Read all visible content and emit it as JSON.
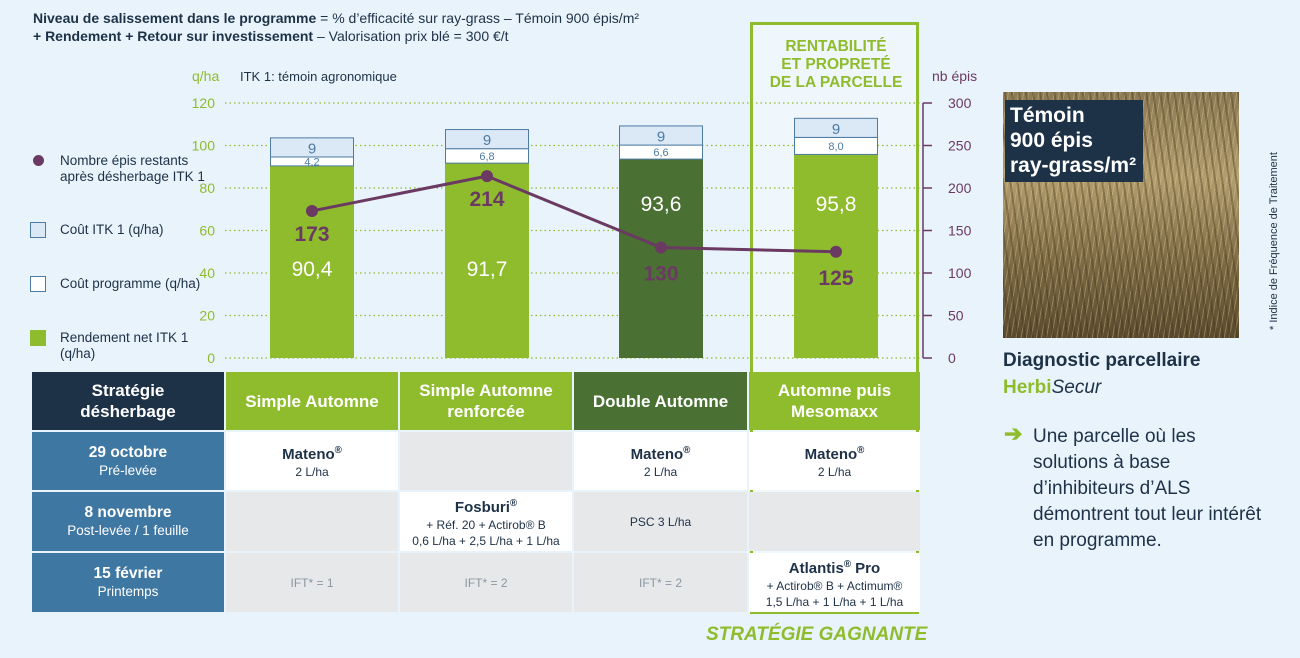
{
  "header": {
    "line1_bold": "Niveau de salissement dans le programme",
    "line1_rest": " = % d’efficacité sur ray-grass – Témoin 900 épis/m²",
    "line2_bold": "+ Rendement + Retour sur investissement",
    "line2_rest": " – Valorisation prix blé = 300 €/t"
  },
  "chart_data": {
    "type": "bar",
    "left_axis_unit": "q/ha",
    "right_axis_unit": "nb épis",
    "subtitle": "ITK 1: témoin agronomique",
    "left_ylim": [
      0,
      120
    ],
    "left_ticks": [
      "0",
      "20",
      "40",
      "60",
      "80",
      "100",
      "120"
    ],
    "right_ylim": [
      0,
      300
    ],
    "right_ticks": [
      "0",
      "50",
      "100",
      "150",
      "200",
      "250",
      "300"
    ],
    "categories": [
      "Simple Automne",
      "Simple Automne renforcée",
      "Double Automne",
      "Automne puis Mesomaxx"
    ],
    "series": [
      {
        "name": "Rendement net ITK 1 (q/ha)",
        "values": [
          90.4,
          91.7,
          93.6,
          95.8
        ],
        "labels": [
          "90,4",
          "91,7",
          "93,6",
          "95,8"
        ]
      },
      {
        "name": "Coût programme (q/ha)",
        "values": [
          4.2,
          6.8,
          6.6,
          8.0
        ],
        "labels": [
          "4,2",
          "6,8",
          "6,6",
          "8,0"
        ]
      },
      {
        "name": "Coût ITK 1 (q/ha)",
        "values": [
          9,
          9,
          9,
          9
        ],
        "labels": [
          "9",
          "9",
          "9",
          "9"
        ]
      },
      {
        "name": "Nombre épis restants après désherbage ITK 1",
        "axis": "right",
        "values": [
          173,
          214,
          130,
          125
        ],
        "labels": [
          "173",
          "214",
          "130",
          "125"
        ]
      }
    ],
    "bar_colors": [
      "#8fbc2d",
      "#8fbc2d",
      "#4a7033",
      "#8fbc2d"
    ],
    "bar_label_colors": [
      "#ffffff",
      "#ffffff",
      "#ffffff",
      "#ffffff"
    ],
    "epis_label_colors": [
      "#6b3a63",
      "#6b3a63",
      "#6b3a63",
      "#6b3a63"
    ],
    "grid": true,
    "legend_position": "left"
  },
  "legend": [
    {
      "label": "Nombre épis restants après désherbage ITK 1",
      "kind": "dot",
      "color": "#6b3a63"
    },
    {
      "label": "Coût ITK 1 (q/ha)",
      "kind": "box",
      "color": "#dbe8f6",
      "border": "#4d7ba3"
    },
    {
      "label": "Coût programme (q/ha)",
      "kind": "box",
      "color": "#ffffff",
      "border": "#4d7ba3"
    },
    {
      "label": "Rendement net ITK 1 (q/ha)",
      "kind": "box",
      "color": "#8fbc2d",
      "border": "#8fbc2d"
    }
  ],
  "highlight": {
    "title_lines": [
      "RENTABILITÉ",
      "ET PROPRETÉ",
      "DE LA PARCELLE"
    ],
    "winner": "STRATÉGIE GAGNANTE"
  },
  "table": {
    "corner": "Stratégie désherbage",
    "columns": [
      "Simple Automne",
      "Simple Automne renforcée",
      "Double Automne",
      "Automne puis Mesomaxx"
    ],
    "rows": [
      {
        "date": "29 octobre",
        "stage": "Pré-levée",
        "cells": [
          {
            "product": "Mateno",
            "reg": "®",
            "detail": "2 L/ha"
          },
          {},
          {
            "product": "Mateno",
            "reg": "®",
            "detail": "2 L/ha"
          },
          {
            "product": "Mateno",
            "reg": "®",
            "detail": "2 L/ha"
          }
        ]
      },
      {
        "date": "8 novembre",
        "stage": "Post-levée / 1 feuille",
        "cells": [
          {},
          {
            "product": "Fosburi",
            "reg": "®",
            "detail": "+ Réf. 20 + Actirob® B",
            "detail2": "0,6 L/ha + 2,5 L/ha + 1 L/ha"
          },
          {
            "detail": "PSC 3 L/ha"
          },
          {}
        ]
      },
      {
        "date": "15 février",
        "stage": "Printemps",
        "cells": [
          {
            "ift": "IFT* = 1"
          },
          {
            "ift": "IFT* = 2"
          },
          {
            "ift": "IFT* = 2"
          },
          {
            "product": "Atlantis",
            "reg": "®",
            "product_suffix": " Pro",
            "detail": "+ Actirob® B + Actimum®",
            "detail2": "1,5 L/ha + 1 L/ha  + 1 L/ha"
          }
        ]
      }
    ]
  },
  "photo_label": [
    "Témoin",
    "900 épis",
    "ray-grass/m²"
  ],
  "side_note": "* Indice de Fréquence de Traitement",
  "diagnostic": {
    "title": "Diagnostic parcellaire",
    "brand_1": "Herbi",
    "brand_2": "Secur",
    "arrow": "➔",
    "text": "Une parcelle où les solutions à base d’inhibiteurs d’ALS démontrent tout leur intérêt en programme."
  }
}
